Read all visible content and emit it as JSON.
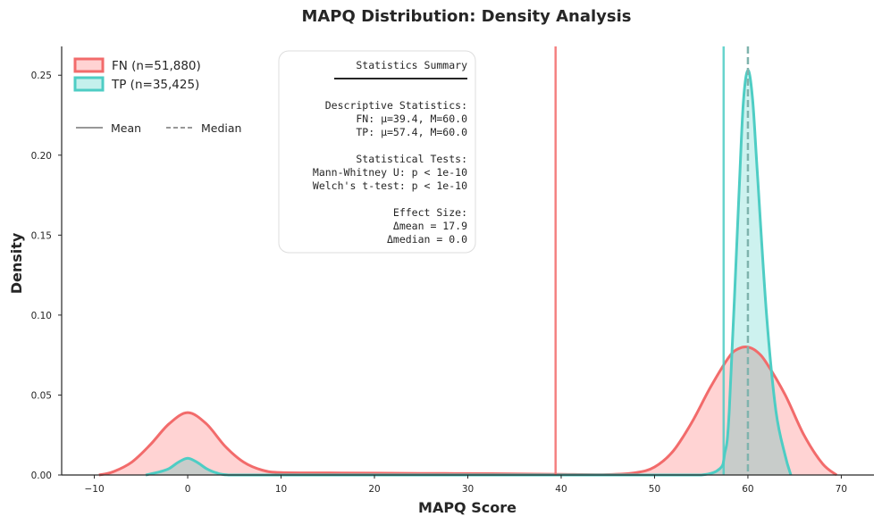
{
  "chart_data": {
    "type": "area",
    "title": "MAPQ Distribution: Density Analysis",
    "xlabel": "MAPQ Score",
    "ylabel": "Density",
    "xlim": [
      -13.5,
      73.5
    ],
    "ylim": [
      0,
      0.268
    ],
    "xticks": [
      -10,
      0,
      10,
      20,
      30,
      40,
      50,
      60,
      70
    ],
    "xtick_labels": [
      "−10",
      "0",
      "10",
      "20",
      "30",
      "40",
      "50",
      "60",
      "70"
    ],
    "yticks": [
      0,
      0.05,
      0.1,
      0.15,
      0.2,
      0.25
    ],
    "ytick_labels": [
      "0.00",
      "0.05",
      "0.10",
      "0.15",
      "0.20",
      "0.25"
    ],
    "grid": false,
    "legend_position": "top-left",
    "series": [
      {
        "name": "FN (n=51,880)",
        "color": "#f26b6b",
        "fill_color": "#ffd3d3",
        "x": [
          -9.5,
          -8,
          -6,
          -4,
          -2,
          0,
          2,
          4,
          6,
          8,
          10,
          15,
          20,
          25,
          30,
          35,
          40,
          45,
          48,
          50,
          52,
          54,
          56,
          58,
          59,
          60,
          61,
          62,
          64,
          66,
          68,
          69.5
        ],
        "y": [
          0.0,
          0.002,
          0.008,
          0.019,
          0.032,
          0.039,
          0.032,
          0.018,
          0.008,
          0.003,
          0.0015,
          0.0013,
          0.0012,
          0.001,
          0.0009,
          0.0007,
          0.0004,
          0.0003,
          0.0015,
          0.005,
          0.015,
          0.033,
          0.055,
          0.074,
          0.079,
          0.08,
          0.077,
          0.07,
          0.05,
          0.025,
          0.007,
          0.0
        ],
        "mean": 39.4,
        "median": 60.0
      },
      {
        "name": "TP (n=35,425)",
        "color": "#4ecdc4",
        "fill_color": "#c4f0ec",
        "x": [
          -4.5,
          -3,
          -2,
          -1,
          0,
          1,
          2,
          3,
          4.5,
          10,
          20,
          30,
          40,
          50,
          55,
          57,
          57.5,
          58,
          59,
          59.5,
          60,
          60.5,
          61,
          62,
          63,
          64,
          64.6
        ],
        "y": [
          0.0,
          0.002,
          0.004,
          0.008,
          0.0105,
          0.008,
          0.004,
          0.0015,
          0.0,
          0.0,
          0.0,
          0.0,
          0.0,
          0.0,
          0.0,
          0.004,
          0.013,
          0.04,
          0.17,
          0.232,
          0.253,
          0.235,
          0.19,
          0.1,
          0.04,
          0.012,
          0.0
        ],
        "mean": 57.4,
        "median": 60.0
      }
    ],
    "line_style_legend": [
      "Mean",
      "Median"
    ],
    "stats_box": [
      "Statistics Summary",
      "────────────────",
      "",
      "Descriptive Statistics:",
      "FN: μ=39.4, M=60.0",
      "TP: μ=57.4, M=60.0",
      "",
      "Statistical Tests:",
      "Mann-Whitney U: p < 1e-10",
      "Welch's t-test: p < 1e-10",
      "",
      "Effect Size:",
      "Δmean = 17.9",
      "Δmedian = 0.0"
    ]
  }
}
